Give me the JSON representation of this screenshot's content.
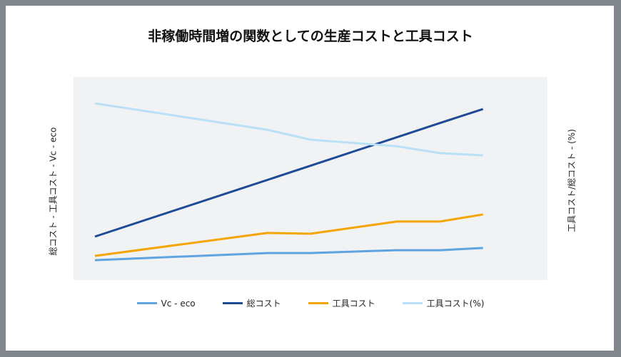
{
  "chart_data": {
    "type": "line",
    "title": "非稼働時間増の関数としての生産コストと工具コスト",
    "ylabel_left": "総コスト - 工具コスト - Vc - eco",
    "ylabel_right": "工具コスト/総コスト - (%)",
    "xlabel": "",
    "x": [
      0,
      4,
      5,
      7,
      8,
      9
    ],
    "xlim": [
      -1,
      10
    ],
    "ylim": [
      0,
      100
    ],
    "grid": false,
    "legend_position": "bottom",
    "series": [
      {
        "name": "Vc - eco",
        "color": "#5fa3e0",
        "values": [
          9.8,
          13.3,
          13.3,
          14.7,
          14.7,
          15.8
        ]
      },
      {
        "name": "総コスト",
        "color": "#1f4a96",
        "values": [
          21.4,
          49.3,
          56.3,
          70.3,
          77.3,
          84.2
        ]
      },
      {
        "name": "工具コスト",
        "color": "#f5a500",
        "values": [
          11.9,
          23.2,
          22.8,
          28.8,
          28.8,
          32.3
        ]
      },
      {
        "name": "工具コスト(%)",
        "color": "#b8e0f7",
        "values": [
          87.0,
          74.0,
          69.1,
          65.9,
          62.5,
          61.4
        ]
      }
    ]
  }
}
